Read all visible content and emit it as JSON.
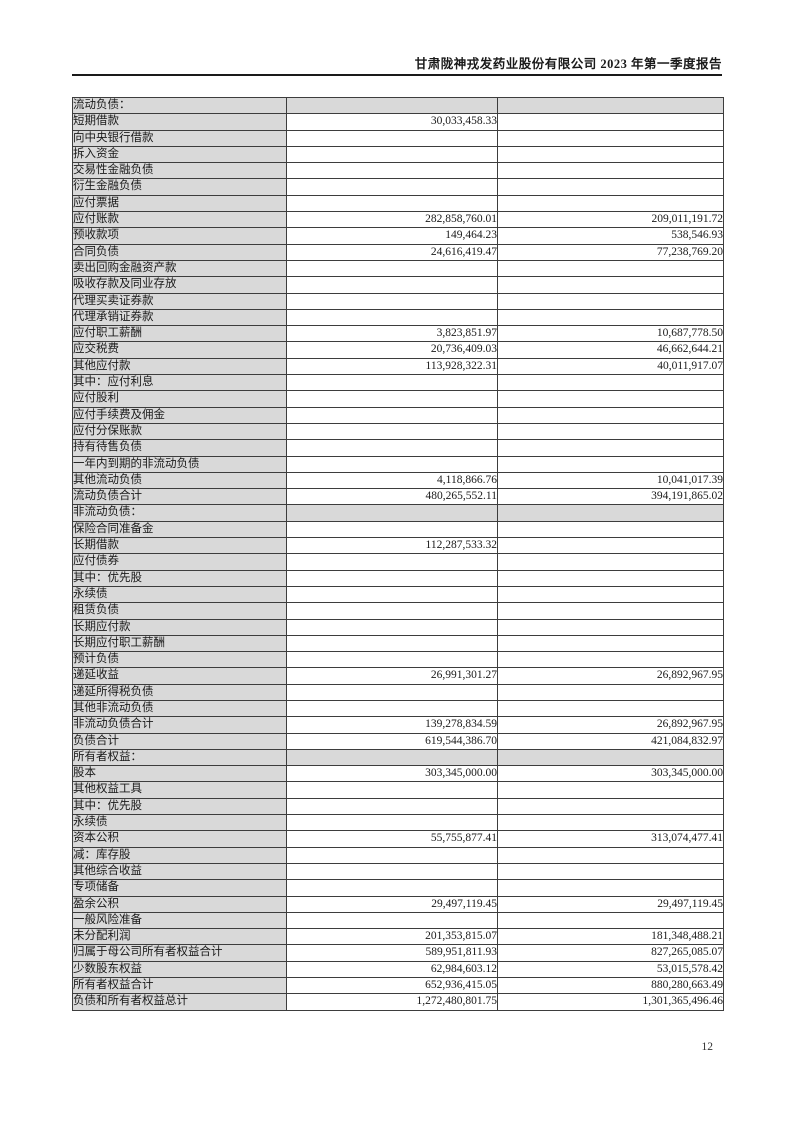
{
  "page": {
    "header_title": "甘肃陇神戎发药业股份有限公司 2023 年第一季度报告",
    "page_number": "12"
  },
  "colors": {
    "row_shading": "#d9d9d9",
    "table_border": "#3d3d3d",
    "header_rule": "#1a1a1a"
  },
  "table": {
    "rows": [
      {
        "label": "流动负债：",
        "indent": 0,
        "section": true,
        "v1": "",
        "v2": ""
      },
      {
        "label": "短期借款",
        "indent": 1,
        "v1": "30,033,458.33",
        "v2": ""
      },
      {
        "label": "向中央银行借款",
        "indent": 1,
        "v1": "",
        "v2": ""
      },
      {
        "label": "拆入资金",
        "indent": 1,
        "v1": "",
        "v2": ""
      },
      {
        "label": "交易性金融负债",
        "indent": 1,
        "v1": "",
        "v2": ""
      },
      {
        "label": "衍生金融负债",
        "indent": 1,
        "v1": "",
        "v2": ""
      },
      {
        "label": "应付票据",
        "indent": 1,
        "v1": "",
        "v2": ""
      },
      {
        "label": "应付账款",
        "indent": 1,
        "v1": "282,858,760.01",
        "v2": "209,011,191.72"
      },
      {
        "label": "预收款项",
        "indent": 1,
        "v1": "149,464.23",
        "v2": "538,546.93"
      },
      {
        "label": "合同负债",
        "indent": 1,
        "v1": "24,616,419.47",
        "v2": "77,238,769.20"
      },
      {
        "label": "卖出回购金融资产款",
        "indent": 1,
        "v1": "",
        "v2": ""
      },
      {
        "label": "吸收存款及同业存放",
        "indent": 1,
        "v1": "",
        "v2": ""
      },
      {
        "label": "代理买卖证券款",
        "indent": 1,
        "v1": "",
        "v2": ""
      },
      {
        "label": "代理承销证券款",
        "indent": 1,
        "v1": "",
        "v2": ""
      },
      {
        "label": "应付职工薪酬",
        "indent": 1,
        "v1": "3,823,851.97",
        "v2": "10,687,778.50"
      },
      {
        "label": "应交税费",
        "indent": 1,
        "v1": "20,736,409.03",
        "v2": "46,662,644.21"
      },
      {
        "label": "其他应付款",
        "indent": 1,
        "v1": "113,928,322.31",
        "v2": "40,011,917.07"
      },
      {
        "label": "其中：应付利息",
        "indent": 2,
        "v1": "",
        "v2": ""
      },
      {
        "label": "应付股利",
        "indent": 3,
        "v1": "",
        "v2": ""
      },
      {
        "label": "应付手续费及佣金",
        "indent": 1,
        "v1": "",
        "v2": ""
      },
      {
        "label": "应付分保账款",
        "indent": 1,
        "v1": "",
        "v2": ""
      },
      {
        "label": "持有待售负债",
        "indent": 1,
        "v1": "",
        "v2": ""
      },
      {
        "label": "一年内到期的非流动负债",
        "indent": 1,
        "v1": "",
        "v2": ""
      },
      {
        "label": "其他流动负债",
        "indent": 1,
        "v1": "4,118,866.76",
        "v2": "10,041,017.39"
      },
      {
        "label": "流动负债合计",
        "indent": 0,
        "v1": "480,265,552.11",
        "v2": "394,191,865.02"
      },
      {
        "label": "非流动负债：",
        "indent": 0,
        "section": true,
        "v1": "",
        "v2": ""
      },
      {
        "label": "保险合同准备金",
        "indent": 1,
        "v1": "",
        "v2": ""
      },
      {
        "label": "长期借款",
        "indent": 1,
        "v1": "112,287,533.32",
        "v2": ""
      },
      {
        "label": "应付债券",
        "indent": 1,
        "v1": "",
        "v2": ""
      },
      {
        "label": "其中：优先股",
        "indent": 2,
        "v1": "",
        "v2": ""
      },
      {
        "label": "永续债",
        "indent": 3,
        "v1": "",
        "v2": ""
      },
      {
        "label": "租赁负债",
        "indent": 1,
        "v1": "",
        "v2": ""
      },
      {
        "label": "长期应付款",
        "indent": 1,
        "v1": "",
        "v2": ""
      },
      {
        "label": "长期应付职工薪酬",
        "indent": 1,
        "v1": "",
        "v2": ""
      },
      {
        "label": "预计负债",
        "indent": 1,
        "v1": "",
        "v2": ""
      },
      {
        "label": "递延收益",
        "indent": 1,
        "v1": "26,991,301.27",
        "v2": "26,892,967.95"
      },
      {
        "label": "递延所得税负债",
        "indent": 1,
        "v1": "",
        "v2": ""
      },
      {
        "label": "其他非流动负债",
        "indent": 1,
        "v1": "",
        "v2": ""
      },
      {
        "label": "非流动负债合计",
        "indent": 0,
        "v1": "139,278,834.59",
        "v2": "26,892,967.95"
      },
      {
        "label": "负债合计",
        "indent": 0,
        "v1": "619,544,386.70",
        "v2": "421,084,832.97"
      },
      {
        "label": "所有者权益：",
        "indent": 0,
        "section": true,
        "v1": "",
        "v2": ""
      },
      {
        "label": "股本",
        "indent": 1,
        "v1": "303,345,000.00",
        "v2": "303,345,000.00"
      },
      {
        "label": "其他权益工具",
        "indent": 1,
        "v1": "",
        "v2": ""
      },
      {
        "label": "其中：优先股",
        "indent": 2,
        "v1": "",
        "v2": ""
      },
      {
        "label": "永续债",
        "indent": 3,
        "v1": "",
        "v2": ""
      },
      {
        "label": "资本公积",
        "indent": 1,
        "v1": "55,755,877.41",
        "v2": "313,074,477.41"
      },
      {
        "label": "减：库存股",
        "indent": 1,
        "v1": "",
        "v2": ""
      },
      {
        "label": "其他综合收益",
        "indent": 1,
        "v1": "",
        "v2": ""
      },
      {
        "label": "专项储备",
        "indent": 1,
        "v1": "",
        "v2": ""
      },
      {
        "label": "盈余公积",
        "indent": 1,
        "v1": "29,497,119.45",
        "v2": "29,497,119.45"
      },
      {
        "label": "一般风险准备",
        "indent": 1,
        "v1": "",
        "v2": ""
      },
      {
        "label": "未分配利润",
        "indent": 1,
        "v1": "201,353,815.07",
        "v2": "181,348,488.21"
      },
      {
        "label": "归属于母公司所有者权益合计",
        "indent": 0,
        "v1": "589,951,811.93",
        "v2": "827,265,085.07"
      },
      {
        "label": "少数股东权益",
        "indent": 1,
        "v1": "62,984,603.12",
        "v2": "53,015,578.42"
      },
      {
        "label": "所有者权益合计",
        "indent": 0,
        "v1": "652,936,415.05",
        "v2": "880,280,663.49"
      },
      {
        "label": "负债和所有者权益总计",
        "indent": 0,
        "v1": "1,272,480,801.75",
        "v2": "1,301,365,496.46"
      }
    ]
  }
}
